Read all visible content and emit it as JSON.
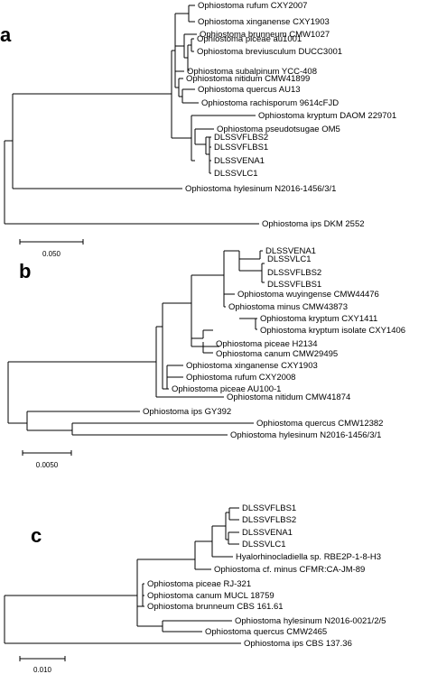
{
  "panels": [
    {
      "label": "a",
      "scale_label": "0.050",
      "taxa": [
        "Ophiostoma rufum CXY2007",
        "Ophiostoma xinganense CXY1903",
        "Ophiostoma brunneum CMW1027",
        "Ophiostoma piceae au1001",
        "Ophiostoma breviusculum DUCC3001",
        "Ophiostoma subalpinum YCC-408",
        "Ophiostoma nitidum CMW41899",
        "Ophiostoma quercus AU13",
        "Ophiostoma rachisporum 9614cFJD",
        "Ophiostoma kryptum DAOM 229701",
        "Ophiostoma pseudotsugae OM5",
        "DLSSVFLBS2",
        "DLSSVFLBS1",
        "DLSSVENA1",
        "DLSSVLC1",
        "Ophiostoma hylesinum N2016-1456/3/1",
        "Ophiostoma ips DKM 2552"
      ]
    },
    {
      "label": "b",
      "scale_label": "0.0050",
      "taxa": [
        "DLSSVENA1",
        "DLSSVLC1",
        "DLSSVFLBS2",
        "DLSSVFLBS1",
        "Ophiostoma wuyingense CMW44476",
        "Ophiostoma minus CMW43873",
        "Ophiostoma kryptum CXY1411",
        "Ophiostoma kryptum isolate CXY1406",
        "Ophiostoma piceae H2134",
        "Ophiostoma canum CMW29495",
        "Ophiostoma xinganense CXY1903",
        "Ophiostoma rufum CXY2008",
        "Ophiostoma piceae AU100-1",
        "Ophiostoma nitidum CMW41874",
        "Ophiostoma ips GY392",
        "Ophiostoma quercus CMW12382",
        "Ophiostoma hylesinum N2016-1456/3/1"
      ]
    },
    {
      "label": "c",
      "scale_label": "0.010",
      "taxa": [
        "DLSSVFLBS1",
        "DLSSVFLBS2",
        "DLSSVENA1",
        "DLSSVLC1",
        "Hyalorhinocladiella sp. RBE2P-1-8-H3",
        "Ophiostoma cf. minus CFMR:CA-JM-89",
        "Ophiostoma piceae RJ-321",
        "Ophiostoma canum MUCL 18759",
        "Ophiostoma brunneum CBS 161.61",
        "Ophiostoma hylesinum N2016-0021/2/5",
        "Ophiostoma quercus CMW2465",
        "Ophiostoma ips CBS 137.36"
      ]
    }
  ]
}
